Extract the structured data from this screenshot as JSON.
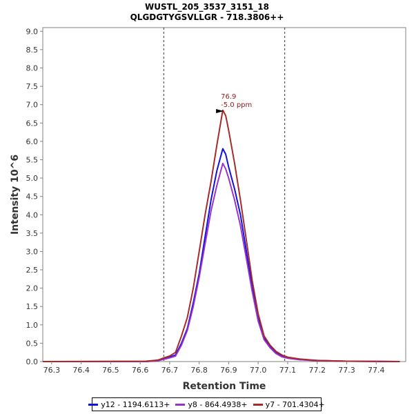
{
  "chart_data": {
    "type": "line",
    "title": "WUSTL_205_3537_3151_18",
    "subtitle": "QLGDGTYGSVLLGR - 718.3806++",
    "xlabel": "Retention Time",
    "ylabel": "Intensity 10^6",
    "xlim": [
      76.27,
      77.5
    ],
    "ylim": [
      0,
      9.1
    ],
    "xticks": [
      "76.3",
      "76.4",
      "76.5",
      "76.6",
      "76.7",
      "76.8",
      "76.9",
      "77.0",
      "77.1",
      "77.2",
      "77.3",
      "77.4"
    ],
    "yticks": [
      "0.0",
      "0.5",
      "1.0",
      "1.5",
      "2.0",
      "2.5",
      "3.0",
      "3.5",
      "4.0",
      "4.5",
      "5.0",
      "5.5",
      "6.0",
      "6.5",
      "7.0",
      "7.5",
      "8.0",
      "8.5",
      "9.0"
    ],
    "grid": false,
    "legend_position": "bottom",
    "integration_bounds": [
      76.68,
      77.09
    ],
    "peak_annotation": {
      "x": 76.89,
      "y": 6.9,
      "lines": [
        "76.9",
        "-5.0 ppm"
      ],
      "color": "#8b1a1a"
    },
    "series": [
      {
        "name": "y12 - 1194.6113+",
        "color": "#1010e0",
        "x": [
          76.27,
          76.62,
          76.66,
          76.68,
          76.7,
          76.72,
          76.74,
          76.76,
          76.78,
          76.8,
          76.82,
          76.84,
          76.86,
          76.88,
          76.89,
          76.9,
          76.92,
          76.94,
          76.96,
          76.98,
          77.0,
          77.02,
          77.04,
          77.06,
          77.08,
          77.1,
          77.14,
          77.2,
          77.3,
          77.48
        ],
        "values": [
          0.0,
          0.0,
          0.03,
          0.08,
          0.12,
          0.18,
          0.5,
          0.9,
          1.6,
          2.4,
          3.4,
          4.4,
          5.2,
          5.8,
          5.65,
          5.3,
          4.7,
          4.0,
          3.0,
          2.0,
          1.2,
          0.65,
          0.42,
          0.25,
          0.15,
          0.1,
          0.05,
          0.03,
          0.01,
          0.0
        ]
      },
      {
        "name": "y8 - 864.4938+",
        "color": "#9932cc",
        "x": [
          76.27,
          76.62,
          76.66,
          76.68,
          76.7,
          76.72,
          76.74,
          76.76,
          76.78,
          76.8,
          76.82,
          76.84,
          76.86,
          76.88,
          76.89,
          76.9,
          76.92,
          76.94,
          76.96,
          76.98,
          77.0,
          77.02,
          77.04,
          77.06,
          77.08,
          77.1,
          77.14,
          77.2,
          77.3,
          77.48
        ],
        "values": [
          0.0,
          0.0,
          0.02,
          0.06,
          0.1,
          0.15,
          0.45,
          0.85,
          1.5,
          2.3,
          3.2,
          4.1,
          4.8,
          5.4,
          5.25,
          5.0,
          4.4,
          3.7,
          2.8,
          1.9,
          1.1,
          0.6,
          0.38,
          0.22,
          0.13,
          0.09,
          0.05,
          0.02,
          0.01,
          0.0
        ]
      },
      {
        "name": "y7 - 701.4304+",
        "color": "#a52a2a",
        "x": [
          76.27,
          76.62,
          76.66,
          76.68,
          76.7,
          76.72,
          76.74,
          76.76,
          76.78,
          76.8,
          76.82,
          76.84,
          76.86,
          76.88,
          76.89,
          76.9,
          76.92,
          76.94,
          76.96,
          76.98,
          77.0,
          77.02,
          77.04,
          77.06,
          77.08,
          77.1,
          77.14,
          77.2,
          77.3,
          77.48
        ],
        "values": [
          0.0,
          0.01,
          0.04,
          0.1,
          0.15,
          0.25,
          0.7,
          1.2,
          2.0,
          3.0,
          4.0,
          4.9,
          5.9,
          6.85,
          6.7,
          6.3,
          5.4,
          4.4,
          3.3,
          2.2,
          1.3,
          0.7,
          0.45,
          0.28,
          0.18,
          0.12,
          0.07,
          0.03,
          0.01,
          0.0
        ]
      }
    ]
  }
}
